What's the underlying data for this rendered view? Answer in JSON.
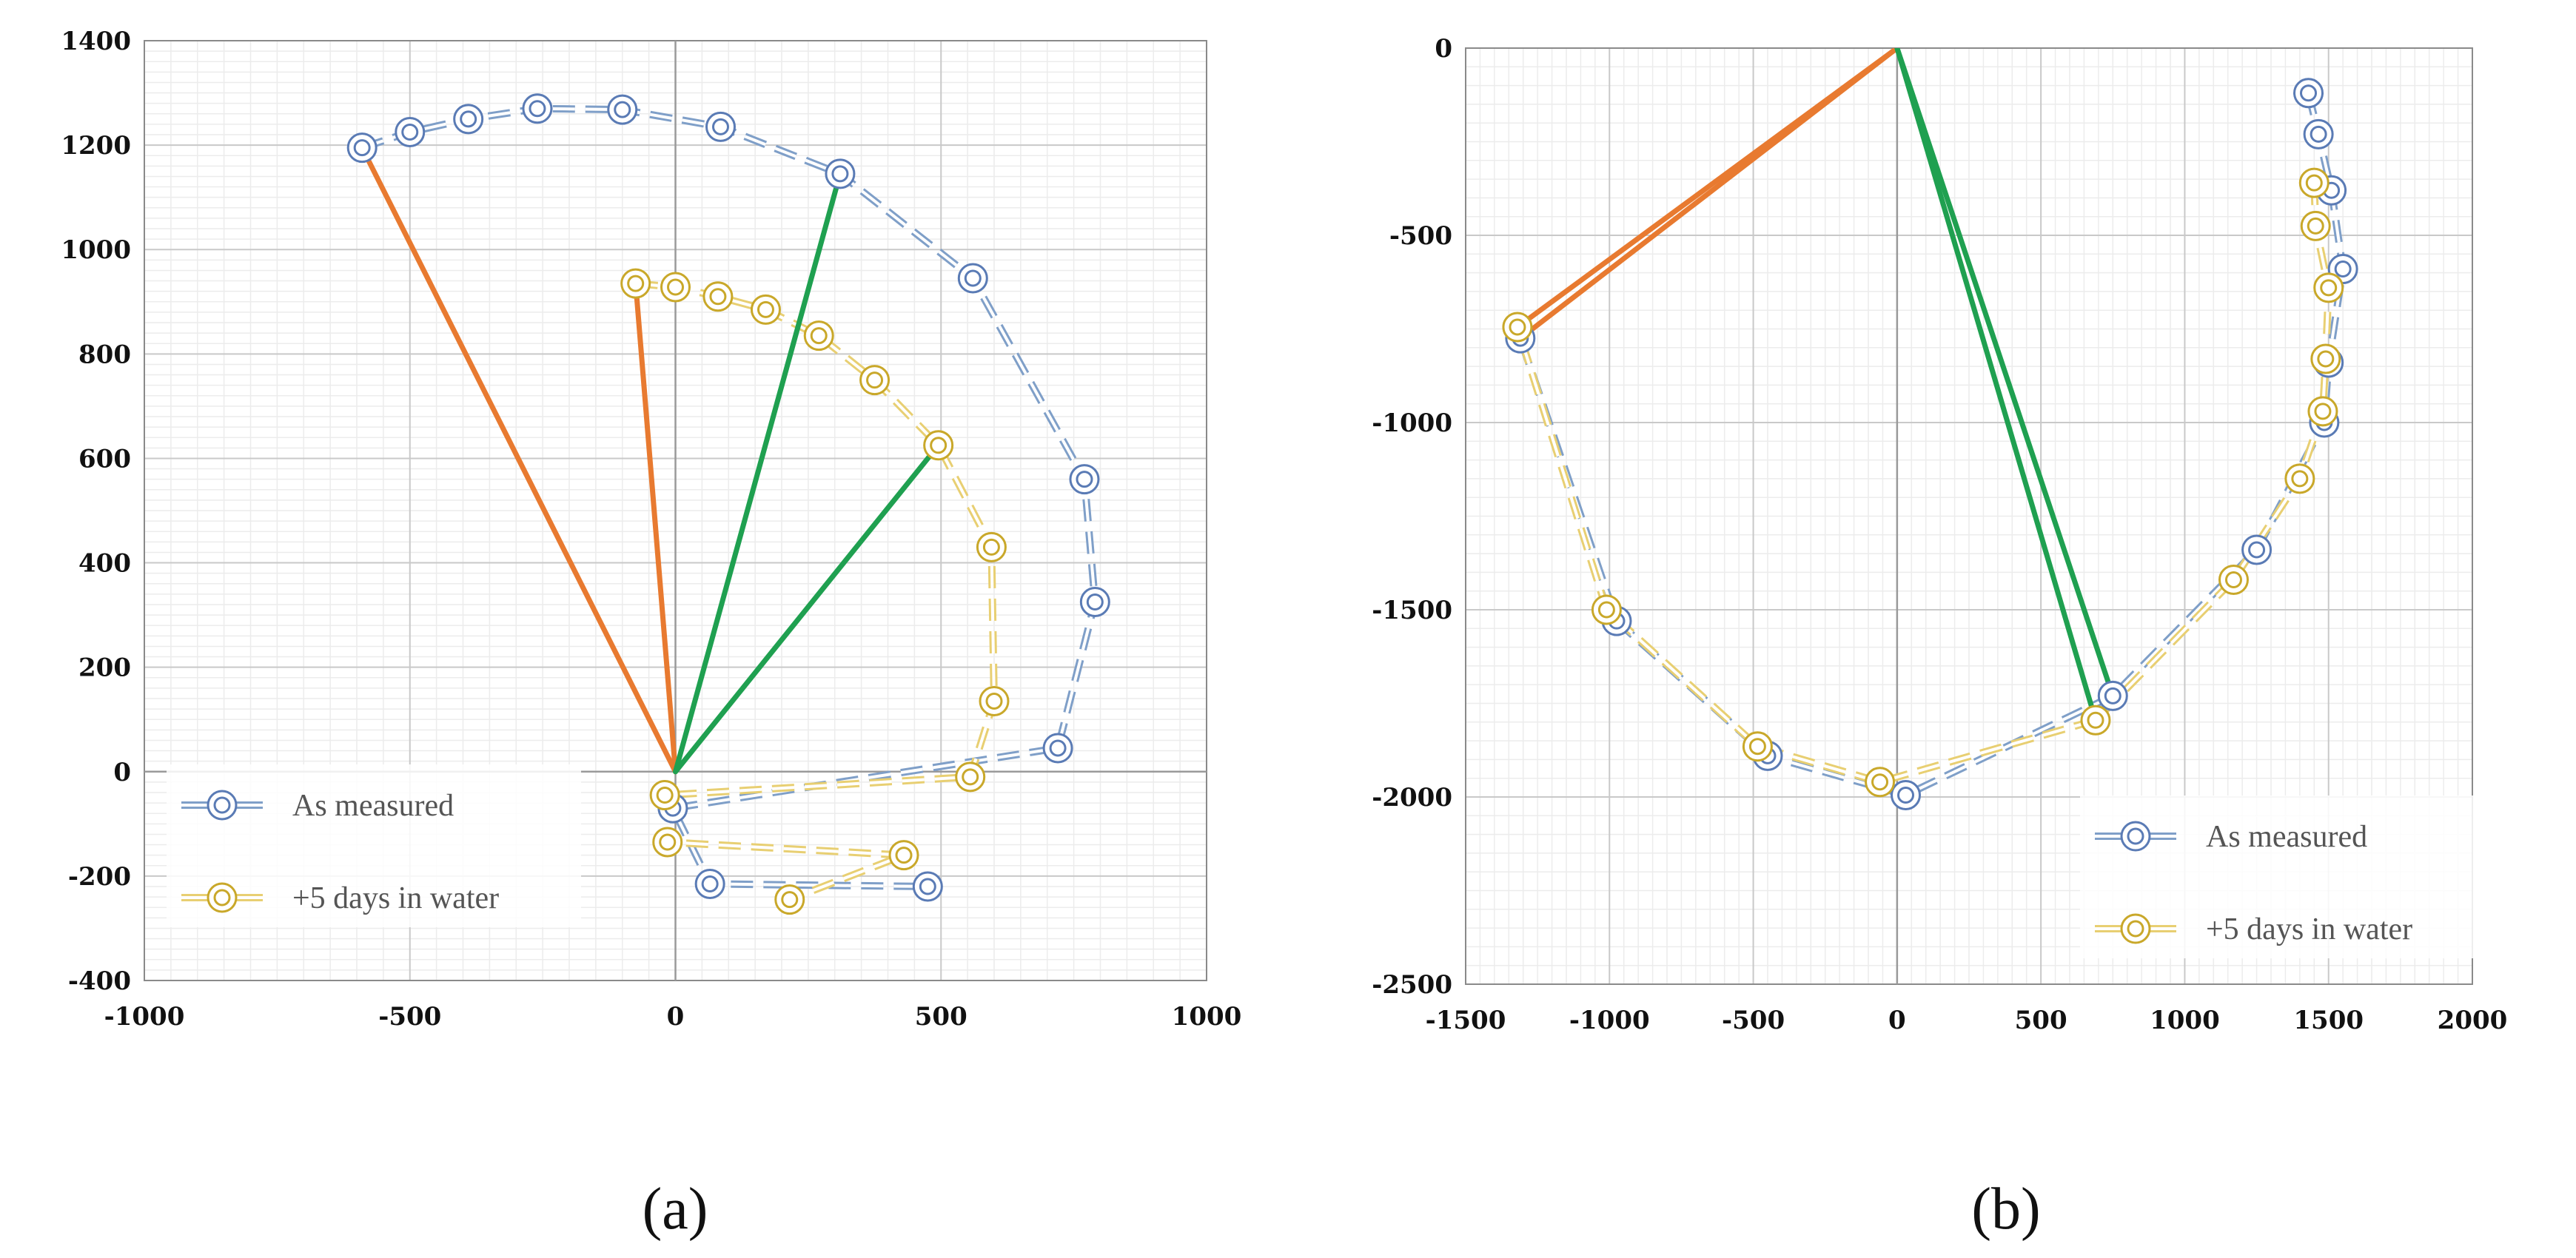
{
  "chart_data": [
    {
      "type": "scatter",
      "caption": "(a)",
      "xlim": [
        -1000,
        1000
      ],
      "ylim": [
        -400,
        1400
      ],
      "xticks": [
        -1000,
        -500,
        0,
        500,
        1000
      ],
      "yticks": [
        -400,
        -200,
        0,
        200,
        400,
        600,
        800,
        1000,
        1200,
        1400
      ],
      "xtick_labels": [
        "-1000",
        "-500",
        "0",
        "500",
        "1000"
      ],
      "ytick_labels": [
        "-400",
        "-200",
        "0",
        "200",
        "400",
        "600",
        "800",
        "1000",
        "1200",
        "1400"
      ],
      "legend_position": "bottom-left",
      "series": [
        {
          "name": "As measured",
          "color": "#7f9fc8",
          "marker_color": "#5a7bb5",
          "x": [
            -590,
            -500,
            -390,
            -260,
            -100,
            85,
            310,
            560,
            770,
            790,
            720,
            -5,
            65,
            475
          ],
          "y": [
            1195,
            1225,
            1250,
            1270,
            1268,
            1235,
            1145,
            945,
            560,
            325,
            45,
            -70,
            -215,
            -220
          ]
        },
        {
          "name": "+5 days in water",
          "color": "#e8cf72",
          "marker_color": "#c9a82a",
          "x": [
            -75,
            0,
            80,
            170,
            270,
            375,
            495,
            595,
            600,
            555,
            -20,
            -15,
            430,
            215
          ],
          "y": [
            935,
            928,
            910,
            885,
            835,
            750,
            625,
            430,
            135,
            -10,
            -45,
            -135,
            -160,
            -245
          ]
        }
      ],
      "lines": [
        {
          "color": "#e87a30",
          "from": [
            0,
            0
          ],
          "to": [
            -590,
            1195
          ]
        },
        {
          "color": "#e87a30",
          "from": [
            0,
            0
          ],
          "to": [
            -75,
            935
          ]
        },
        {
          "color": "#1fa050",
          "from": [
            0,
            0
          ],
          "to": [
            310,
            1145
          ]
        },
        {
          "color": "#1fa050",
          "from": [
            0,
            0
          ],
          "to": [
            495,
            625
          ]
        }
      ]
    },
    {
      "type": "scatter",
      "caption": "(b)",
      "xlim": [
        -1500,
        2000
      ],
      "ylim": [
        -2500,
        0
      ],
      "xticks": [
        -1500,
        -1000,
        -500,
        0,
        500,
        1000,
        1500,
        2000
      ],
      "yticks": [
        0,
        -500,
        -1000,
        -1500,
        -2000,
        -2500
      ],
      "xtick_labels": [
        "-1500",
        "-1000",
        "-500",
        "0",
        "500",
        "1000",
        "1500",
        "2000"
      ],
      "ytick_labels": [
        "0",
        "-500",
        "-1000",
        "-1500",
        "-2000",
        "-2500"
      ],
      "legend_position": "bottom-right",
      "series": [
        {
          "name": "As measured",
          "color": "#7f9fc8",
          "marker_color": "#5a7bb5",
          "x": [
            1430,
            1465,
            1510,
            1550,
            1500,
            1485,
            1250,
            750,
            30,
            -450,
            -975,
            -1310
          ],
          "y": [
            -120,
            -230,
            -380,
            -590,
            -840,
            -1000,
            -1340,
            -1730,
            -1995,
            -1890,
            -1530,
            -775
          ]
        },
        {
          "name": "+5 days in water",
          "color": "#e8cf72",
          "marker_color": "#c9a82a",
          "x": [
            1450,
            1455,
            1500,
            1490,
            1480,
            1400,
            1170,
            690,
            -60,
            -485,
            -1010,
            -1320
          ],
          "y": [
            -360,
            -475,
            -640,
            -830,
            -970,
            -1150,
            -1420,
            -1795,
            -1960,
            -1865,
            -1500,
            -745
          ]
        }
      ],
      "lines": [
        {
          "color": "#e87a30",
          "from": [
            0,
            0
          ],
          "to": [
            -1310,
            -775
          ]
        },
        {
          "color": "#e87a30",
          "from": [
            0,
            0
          ],
          "to": [
            -1320,
            -745
          ]
        },
        {
          "color": "#1fa050",
          "from": [
            0,
            0
          ],
          "to": [
            750,
            -1730
          ]
        },
        {
          "color": "#1fa050",
          "from": [
            0,
            0
          ],
          "to": [
            690,
            -1795
          ]
        }
      ]
    }
  ]
}
